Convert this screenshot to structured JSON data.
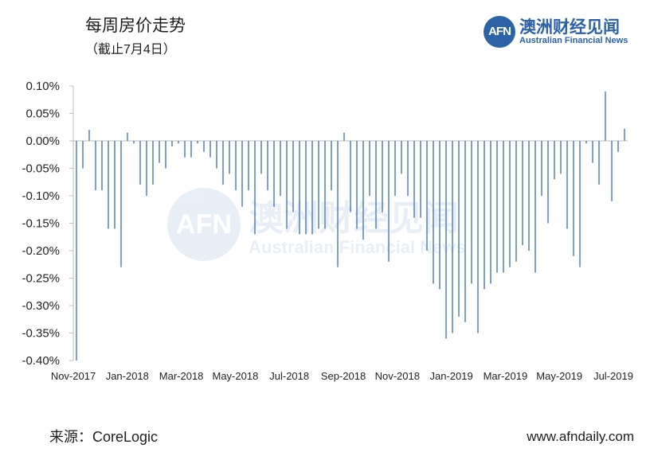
{
  "header": {
    "title": "每周房价走势",
    "subtitle": "（截止7月4日）"
  },
  "logo": {
    "mark": "AFN",
    "name_cn": "澳洲财经见闻",
    "name_en": "Australian Financial News"
  },
  "footer": {
    "source": "来源：CoreLogic",
    "website": "www.afndaily.com"
  },
  "colors": {
    "bar": "#4f81bd",
    "accent": "#2b63a6"
  },
  "chart_data": {
    "type": "bar",
    "ylim": [
      -0.4,
      0.1
    ],
    "y_ticks": [
      0.1,
      0.05,
      0.0,
      -0.05,
      -0.1,
      -0.15,
      -0.2,
      -0.25,
      -0.3,
      -0.35,
      -0.4
    ],
    "y_tick_labels": [
      "0.10%",
      "0.05%",
      "0.00%",
      "-0.05%",
      "-0.10%",
      "-0.15%",
      "-0.20%",
      "-0.25%",
      "-0.30%",
      "-0.35%",
      "-0.40%"
    ],
    "x_tick_labels": [
      "Nov-2017",
      "Jan-2018",
      "Mar-2018",
      "May-2018",
      "Jul-2018",
      "Sep-2018",
      "Nov-2018",
      "Jan-2019",
      "Mar-2019",
      "May-2019",
      "Jul-2019"
    ],
    "grid": false,
    "legend": "none",
    "values": [
      -0.4,
      -0.05,
      0.02,
      -0.09,
      -0.09,
      -0.16,
      -0.16,
      -0.23,
      0.015,
      -0.005,
      -0.08,
      -0.1,
      -0.08,
      -0.04,
      -0.05,
      -0.01,
      -0.005,
      -0.03,
      -0.03,
      -0.005,
      -0.02,
      -0.03,
      -0.05,
      -0.08,
      -0.06,
      -0.09,
      -0.12,
      -0.09,
      -0.17,
      -0.06,
      -0.09,
      -0.12,
      -0.1,
      -0.16,
      -0.13,
      -0.17,
      -0.17,
      -0.17,
      -0.16,
      -0.16,
      -0.09,
      -0.23,
      0.015,
      -0.13,
      -0.16,
      -0.18,
      -0.1,
      -0.16,
      -0.13,
      -0.22,
      -0.1,
      -0.06,
      -0.1,
      -0.14,
      -0.14,
      -0.2,
      -0.26,
      -0.27,
      -0.36,
      -0.35,
      -0.32,
      -0.33,
      -0.26,
      -0.35,
      -0.27,
      -0.26,
      -0.24,
      -0.24,
      -0.23,
      -0.22,
      -0.19,
      -0.2,
      -0.24,
      -0.1,
      -0.15,
      -0.07,
      -0.06,
      -0.16,
      -0.21,
      -0.23,
      -0.005,
      -0.04,
      -0.08,
      0.09,
      -0.11,
      -0.02,
      0.022
    ]
  }
}
